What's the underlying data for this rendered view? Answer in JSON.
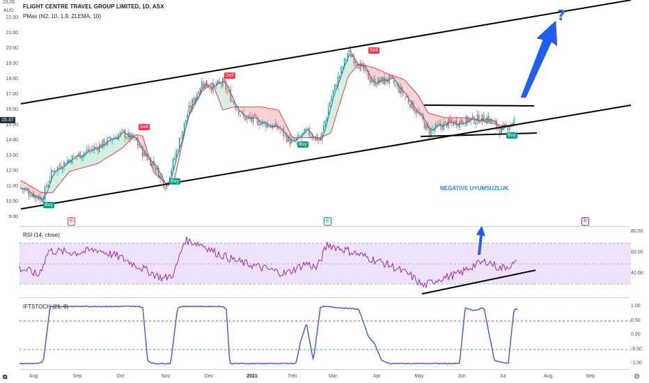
{
  "header": {
    "title": "FLIGHT CENTRE TRAVEL GROUP LIMITED, 1D, ASX",
    "indicator": "PMax (hl2, 10, 1.9, ZLEMA, 10)",
    "currency": "AUD",
    "top_value": "23.00",
    "last_price": "15.37"
  },
  "rsi": {
    "label": "RSI (14, close)"
  },
  "stoch": {
    "label": "IFTSTOCH (21, 9)"
  },
  "annotation": {
    "divergence_label": "NEGATIVE UYUMSUZLUK",
    "question_mark": "?"
  },
  "signals": {
    "sell_label": "Sell",
    "buy_label": "Buy",
    "earnings_label": "E"
  },
  "axes": {
    "price_ticks": [
      "22.00",
      "21.00",
      "20.00",
      "19.00",
      "18.00",
      "17.00",
      "16.00",
      "15.00",
      "14.00",
      "13.00",
      "12.00",
      "11.00",
      "10.00",
      "9.00"
    ],
    "rsi_ticks": [
      "80.00",
      "60.00",
      "40.00"
    ],
    "stoch_ticks": [
      "1.00",
      "0.50",
      "0.00",
      "-0.50",
      "-1.00"
    ],
    "x_ticks": [
      "Aug",
      "Sep",
      "Oct",
      "Nov",
      "Dec",
      "2021",
      "Feb",
      "Mar",
      "Apr",
      "May",
      "Jun",
      "Jul",
      "Aug",
      "Sep"
    ]
  },
  "chart_data": [
    {
      "type": "line",
      "title": "FLIGHT CENTRE TRAVEL GROUP LIMITED, 1D, ASX",
      "ylabel": "AUD",
      "ylim": [
        9,
        22.8
      ],
      "x": [
        "Jul",
        "Aug",
        "Sep",
        "Oct",
        "Nov",
        "Dec",
        "2021",
        "Feb",
        "Mar",
        "Apr",
        "May",
        "Jun",
        "Jul"
      ],
      "series": [
        {
          "name": "close",
          "values": [
            10.9,
            10.4,
            13.2,
            14.3,
            11.5,
            17.4,
            15.0,
            14.5,
            19.7,
            17.5,
            14.8,
            15.5,
            15.4
          ]
        },
        {
          "name": "PMax",
          "values": [
            11.4,
            10.5,
            12.5,
            13.9,
            12.0,
            16.2,
            16.0,
            14.4,
            19.0,
            18.7,
            15.5,
            15.1,
            14.9
          ]
        }
      ],
      "signals": [
        {
          "type": "Buy",
          "date": "Aug",
          "price": 9.9
        },
        {
          "type": "Sell",
          "date": "Oct",
          "price": 15.4
        },
        {
          "type": "Buy",
          "date": "Nov",
          "price": 11.0
        },
        {
          "type": "Sell",
          "date": "Dec",
          "price": 18.3
        },
        {
          "type": "Buy",
          "date": "Feb",
          "price": 13.6
        },
        {
          "type": "Sell",
          "date": "Mar",
          "price": 19.8
        },
        {
          "type": "Buy",
          "date": "Jul",
          "price": 14.5
        }
      ]
    },
    {
      "type": "line",
      "title": "RSI (14, close)",
      "ylim": [
        20,
        85
      ],
      "x": [
        "Jul",
        "Aug",
        "Sep",
        "Oct",
        "Nov",
        "Dec",
        "2021",
        "Feb",
        "Mar",
        "Apr",
        "May",
        "Jun",
        "Jul"
      ],
      "series": [
        {
          "name": "RSI",
          "values": [
            45,
            40,
            60,
            63,
            35,
            72,
            52,
            40,
            68,
            55,
            28,
            48,
            52
          ]
        }
      ]
    },
    {
      "type": "line",
      "title": "IFTSTOCH (21, 9)",
      "ylim": [
        -1.1,
        1.1
      ],
      "x": [
        "Jul",
        "Aug",
        "Sep",
        "Oct",
        "Nov",
        "Dec",
        "2021",
        "Feb",
        "Mar",
        "Apr",
        "May",
        "Jun",
        "Jul"
      ],
      "series": [
        {
          "name": "IFTSTOCH",
          "values": [
            -1,
            -1,
            1,
            1,
            -1,
            1,
            1,
            -1,
            1,
            -0.2,
            -1,
            1,
            0.9
          ]
        }
      ]
    }
  ],
  "colors": {
    "up": "#26a69a",
    "down": "#ef5350",
    "ma_line": "#2f7fb8",
    "pmax": "#f23645",
    "rsi": "#9c27b0",
    "stoch": "#3f51d6",
    "trendline": "#000000",
    "arrow": "#1e5ff0"
  }
}
